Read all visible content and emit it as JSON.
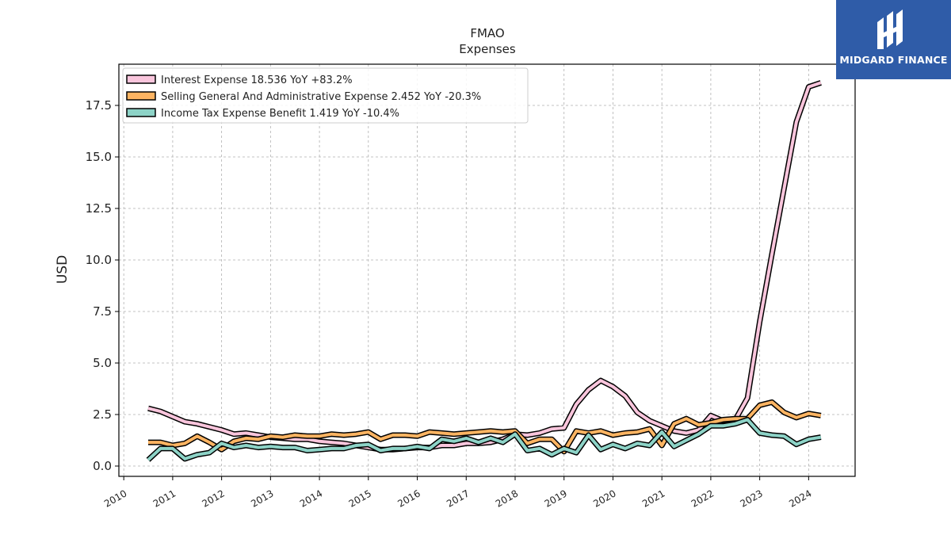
{
  "brand": {
    "name": "MIDGARD FINANCE",
    "color": "#2f5ca8"
  },
  "chart_data": {
    "type": "line",
    "title": "FMAO",
    "subtitle": "Expenses",
    "xlabel": "",
    "ylabel": "USD",
    "xlim": [
      2009.9,
      2024.95
    ],
    "ylim": [
      -0.5,
      19.5
    ],
    "x_ticks": [
      "2010",
      "2011",
      "2012",
      "2013",
      "2014",
      "2015",
      "2016",
      "2017",
      "2018",
      "2019",
      "2020",
      "2021",
      "2022",
      "2023",
      "2024"
    ],
    "y_ticks": [
      "0.0",
      "2.5",
      "5.0",
      "7.5",
      "10.0",
      "12.5",
      "15.0",
      "17.5"
    ],
    "grid": true,
    "legend_position": "top-left",
    "x": [
      2010.5,
      2010.75,
      2011.0,
      2011.25,
      2011.5,
      2011.75,
      2012.0,
      2012.25,
      2012.5,
      2012.75,
      2013.0,
      2013.25,
      2013.5,
      2013.75,
      2014.0,
      2014.25,
      2014.5,
      2014.75,
      2015.0,
      2015.25,
      2015.5,
      2015.75,
      2016.0,
      2016.25,
      2016.5,
      2016.75,
      2017.0,
      2017.25,
      2017.5,
      2017.75,
      2018.0,
      2018.25,
      2018.5,
      2018.75,
      2019.0,
      2019.25,
      2019.5,
      2019.75,
      2020.0,
      2020.25,
      2020.5,
      2020.75,
      2021.0,
      2021.25,
      2021.5,
      2021.75,
      2022.0,
      2022.25,
      2022.5,
      2022.75,
      2023.0,
      2023.25,
      2023.5,
      2023.75,
      2024.0,
      2024.25
    ],
    "series": [
      {
        "name": "Interest Expense",
        "legend": "Interest Expense  18.536 YoY +83.2%",
        "color": "#f9c5dc",
        "values": [
          2.8,
          2.65,
          2.4,
          2.15,
          2.05,
          1.9,
          1.75,
          1.55,
          1.6,
          1.5,
          1.4,
          1.35,
          1.3,
          1.3,
          1.2,
          1.15,
          1.1,
          1.0,
          0.9,
          0.8,
          0.8,
          0.85,
          0.9,
          0.9,
          1.0,
          1.0,
          1.1,
          1.1,
          1.15,
          1.3,
          1.55,
          1.5,
          1.6,
          1.8,
          1.85,
          3.0,
          3.7,
          4.15,
          3.85,
          3.4,
          2.6,
          2.2,
          1.95,
          1.7,
          1.6,
          1.75,
          2.45,
          2.2,
          2.25,
          3.3,
          7.0,
          10.3,
          13.5,
          16.7,
          18.4,
          18.6
        ]
      },
      {
        "name": "Selling General And Administrative Expense",
        "legend": "Selling General And Administrative Expense  2.452 YoY -20.3%",
        "color": "#fdb462",
        "values": [
          1.15,
          1.15,
          1.0,
          1.1,
          1.45,
          1.15,
          0.8,
          1.2,
          1.35,
          1.3,
          1.45,
          1.4,
          1.5,
          1.45,
          1.45,
          1.55,
          1.5,
          1.55,
          1.65,
          1.3,
          1.5,
          1.5,
          1.45,
          1.65,
          1.6,
          1.55,
          1.6,
          1.65,
          1.7,
          1.65,
          1.7,
          1.1,
          1.3,
          1.3,
          0.7,
          1.7,
          1.6,
          1.7,
          1.5,
          1.6,
          1.65,
          1.8,
          1.0,
          2.05,
          2.3,
          2.0,
          2.1,
          2.25,
          2.3,
          2.3,
          2.95,
          3.1,
          2.6,
          2.35,
          2.55,
          2.45
        ]
      },
      {
        "name": "Income Tax Expense Benefit",
        "legend": "Income Tax Expense Benefit  1.419 YoY -10.4%",
        "color": "#8dd3c7",
        "values": [
          0.3,
          0.85,
          0.85,
          0.35,
          0.55,
          0.65,
          1.1,
          0.9,
          1.0,
          0.9,
          0.95,
          0.9,
          0.9,
          0.75,
          0.8,
          0.85,
          0.85,
          1.0,
          1.05,
          0.75,
          0.85,
          0.85,
          0.95,
          0.85,
          1.3,
          1.2,
          1.35,
          1.15,
          1.35,
          1.15,
          1.55,
          0.75,
          0.85,
          0.55,
          0.85,
          0.65,
          1.5,
          0.8,
          1.05,
          0.85,
          1.1,
          1.0,
          1.65,
          0.95,
          1.25,
          1.55,
          1.95,
          1.95,
          2.05,
          2.25,
          1.6,
          1.5,
          1.45,
          1.05,
          1.3,
          1.4
        ]
      }
    ]
  }
}
